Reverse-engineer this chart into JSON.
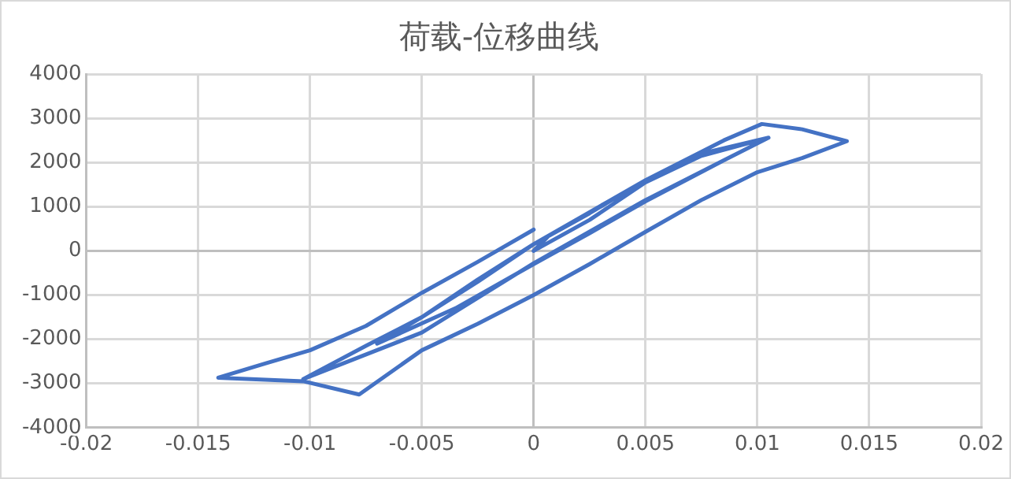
{
  "chart_data": {
    "type": "line",
    "title": "荷载-位移曲线",
    "xlim": [
      -0.02,
      0.02
    ],
    "xticks": [
      -0.02,
      -0.015,
      -0.01,
      -0.005,
      0,
      0.005,
      0.01,
      0.015,
      0.02
    ],
    "ylim": [
      -4000,
      4000
    ],
    "yticks": [
      -4000,
      -3000,
      -2000,
      -1000,
      0,
      1000,
      2000,
      3000,
      4000
    ],
    "grid": true,
    "legend": false,
    "marker": "none",
    "line_style": "solid",
    "series": [
      {
        "color": "#4472c4",
        "x": [
          0,
          0.0006,
          0,
          0.0025,
          0.005,
          0.0075,
          0.0105,
          0.0085,
          0.005,
          0.0025,
          0,
          -0.0035,
          -0.007,
          -0.005,
          -0.0025,
          0,
          0.0025,
          0.005,
          0.0075,
          0.0105,
          0.0085,
          0.005,
          0,
          -0.005,
          -0.0103,
          -0.0075,
          -0.005,
          -0.0025,
          0,
          0.005,
          0.0085,
          0.0102,
          0.012,
          0.014,
          0.012,
          0.01,
          0.0075,
          0.005,
          0.0025,
          0,
          -0.0025,
          -0.005,
          -0.0078,
          -0.0103,
          -0.0141,
          -0.012,
          -0.01,
          -0.0075,
          -0.005,
          -0.0025,
          0
        ],
        "values": [
          0,
          300,
          0,
          700,
          1550,
          2150,
          2560,
          2050,
          1120,
          400,
          -300,
          -1300,
          -2100,
          -1500,
          -650,
          150,
          850,
          1600,
          2200,
          2560,
          2050,
          1150,
          -280,
          -1850,
          -2900,
          -2150,
          -1500,
          -700,
          150,
          1600,
          2500,
          2870,
          2750,
          2480,
          2100,
          1780,
          1150,
          430,
          -300,
          -1000,
          -1650,
          -2250,
          -3250,
          -2950,
          -2870,
          -2550,
          -2250,
          -1700,
          -950,
          -250,
          480
        ]
      }
    ]
  }
}
